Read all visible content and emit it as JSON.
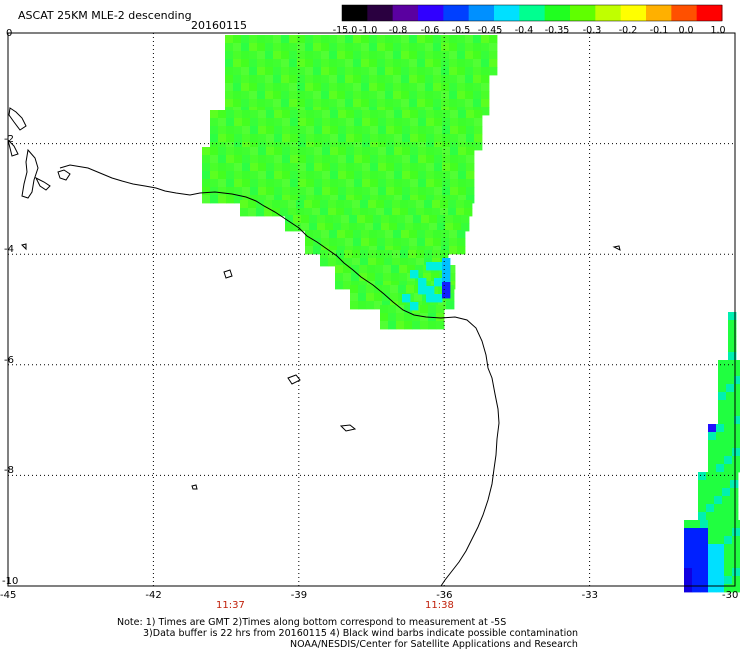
{
  "header": {
    "title": "ASCAT 25KM MLE-2 descending",
    "date": "20160115"
  },
  "colorbar": {
    "labels": [
      "-15.0",
      "-1.0",
      "-0.8",
      "-0.6",
      "-0.5",
      "-0.45",
      "-0.4",
      "-0.35",
      "-0.3",
      "-0.2",
      "-0.1",
      "0.0",
      "1.0"
    ],
    "colors": [
      "#000000",
      "#2a0040",
      "#5a00a0",
      "#3000ff",
      "#0040ff",
      "#0090ff",
      "#00e0ff",
      "#00ff90",
      "#20ff20",
      "#60ff00",
      "#c0ff00",
      "#ffff00",
      "#ffb000",
      "#ff5000",
      "#ff0000"
    ]
  },
  "axes": {
    "x_ticks": [
      "-45",
      "-42",
      "-39",
      "-36",
      "-33",
      "-30"
    ],
    "y_ticks": [
      "0",
      "-2",
      "-4",
      "-6",
      "-8",
      "-10"
    ],
    "x_range": [
      -45,
      -30
    ],
    "y_range": [
      -10,
      0
    ]
  },
  "times": [
    "11:37",
    "11:38"
  ],
  "notes": [
    "Note: 1) Times are GMT 2)Times along bottom correspond to measurement at -5S",
    "3)Data buffer is 22 hrs from 20160115 4) Black wind barbs indicate possible contamination",
    "NOAA/NESDIS/Center for Satellite Applications and Research"
  ]
}
